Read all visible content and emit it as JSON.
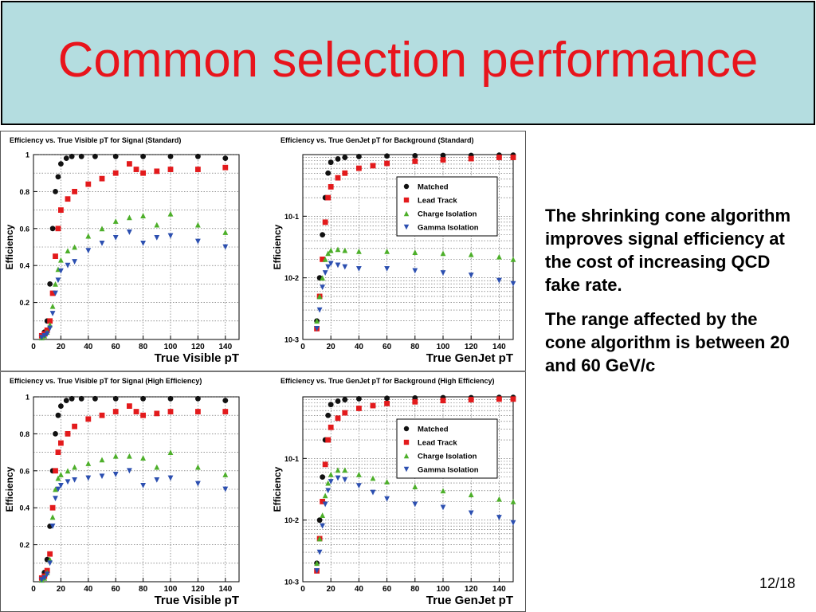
{
  "slide": {
    "title": "Common selection performance",
    "bullets": [
      "The shrinking cone algorithm improves signal efficiency at the cost of increasing QCD fake rate.",
      "The range affected by the cone algorithm is between 20 and 60 GeV/c"
    ],
    "page_number": "12/18"
  },
  "colors": {
    "title": "#e8141c",
    "title_bg": "#b4dde0",
    "Matched": "#111111",
    "Lead Track": "#e31a1c",
    "Charge Isolation": "#4daf2a",
    "Gamma Isolation": "#2c4fb0"
  },
  "chart_data": [
    {
      "type": "scatter",
      "title": "Efficiency vs. True Visible pT for Signal (Standard)",
      "xlabel": "True Visible pT",
      "ylabel": "Efficiency",
      "xlim": [
        0,
        150
      ],
      "ylim": [
        0,
        1
      ],
      "yscale": "linear",
      "xticks": [
        "0",
        "20",
        "40",
        "60",
        "80",
        "100",
        "120",
        "140"
      ],
      "yticks": [
        "0.2",
        "0.4",
        "0.6",
        "0.8",
        "1"
      ],
      "grid": true,
      "legend": "none",
      "series": [
        {
          "name": "Matched",
          "marker": "circle",
          "x": [
            6,
            8,
            10,
            12,
            14,
            16,
            18,
            20,
            24,
            28,
            35,
            45,
            60,
            80,
            100,
            120,
            140
          ],
          "y": [
            0.02,
            0.04,
            0.1,
            0.3,
            0.6,
            0.8,
            0.88,
            0.95,
            0.98,
            0.99,
            0.99,
            0.99,
            0.99,
            0.99,
            0.99,
            0.99,
            0.98
          ]
        },
        {
          "name": "Lead Track",
          "marker": "square",
          "x": [
            6,
            8,
            10,
            12,
            14,
            16,
            18,
            20,
            25,
            30,
            40,
            50,
            60,
            70,
            75,
            80,
            90,
            100,
            120,
            140
          ],
          "y": [
            0.02,
            0.03,
            0.05,
            0.1,
            0.25,
            0.45,
            0.6,
            0.7,
            0.76,
            0.8,
            0.84,
            0.87,
            0.9,
            0.95,
            0.92,
            0.9,
            0.91,
            0.92,
            0.92,
            0.93
          ]
        },
        {
          "name": "Charge Isolation",
          "marker": "triangle-up",
          "x": [
            6,
            8,
            10,
            12,
            14,
            16,
            18,
            20,
            25,
            30,
            40,
            50,
            60,
            70,
            80,
            90,
            100,
            120,
            140
          ],
          "y": [
            0.01,
            0.02,
            0.04,
            0.08,
            0.18,
            0.3,
            0.38,
            0.43,
            0.48,
            0.5,
            0.56,
            0.6,
            0.64,
            0.66,
            0.67,
            0.62,
            0.68,
            0.62,
            0.58
          ]
        },
        {
          "name": "Gamma Isolation",
          "marker": "triangle-down",
          "x": [
            6,
            8,
            10,
            12,
            14,
            16,
            18,
            20,
            25,
            30,
            40,
            50,
            60,
            70,
            80,
            90,
            100,
            120,
            140
          ],
          "y": [
            0.01,
            0.02,
            0.03,
            0.06,
            0.14,
            0.25,
            0.32,
            0.37,
            0.4,
            0.42,
            0.48,
            0.52,
            0.55,
            0.58,
            0.52,
            0.55,
            0.56,
            0.53,
            0.5
          ]
        }
      ]
    },
    {
      "type": "scatter",
      "title": "Efficiency vs. True GenJet pT for Background (Standard)",
      "xlabel": "True GenJet pT",
      "ylabel": "Efficiency",
      "xlim": [
        0,
        150
      ],
      "ylim": [
        0.001,
        1
      ],
      "yscale": "log",
      "xticks": [
        "0",
        "20",
        "40",
        "60",
        "80",
        "100",
        "120",
        "140"
      ],
      "yticks": [
        "10-3",
        "10-2",
        "10-1"
      ],
      "grid": true,
      "legend": "top-right",
      "series": [
        {
          "name": "Matched",
          "marker": "circle",
          "x": [
            10,
            12,
            14,
            16,
            18,
            20,
            25,
            30,
            40,
            60,
            80,
            100,
            120,
            140,
            150
          ],
          "y": [
            0.002,
            0.01,
            0.05,
            0.2,
            0.5,
            0.75,
            0.85,
            0.9,
            0.93,
            0.95,
            0.96,
            0.97,
            0.97,
            0.98,
            0.98
          ]
        },
        {
          "name": "Lead Track",
          "marker": "square",
          "x": [
            10,
            12,
            14,
            16,
            18,
            20,
            25,
            30,
            40,
            50,
            60,
            80,
            100,
            120,
            140,
            150
          ],
          "y": [
            0.0015,
            0.005,
            0.02,
            0.08,
            0.2,
            0.3,
            0.42,
            0.5,
            0.6,
            0.66,
            0.72,
            0.78,
            0.82,
            0.86,
            0.9,
            0.9
          ]
        },
        {
          "name": "Charge Isolation",
          "marker": "triangle-up",
          "x": [
            10,
            12,
            14,
            16,
            18,
            20,
            25,
            30,
            40,
            60,
            80,
            100,
            120,
            140,
            150
          ],
          "y": [
            0.002,
            0.005,
            0.01,
            0.02,
            0.025,
            0.028,
            0.029,
            0.028,
            0.027,
            0.027,
            0.026,
            0.025,
            0.024,
            0.022,
            0.02
          ]
        },
        {
          "name": "Gamma Isolation",
          "marker": "triangle-down",
          "x": [
            10,
            12,
            14,
            16,
            18,
            20,
            25,
            30,
            40,
            60,
            80,
            100,
            120,
            140,
            150
          ],
          "y": [
            0.0015,
            0.003,
            0.007,
            0.012,
            0.015,
            0.017,
            0.016,
            0.015,
            0.014,
            0.014,
            0.013,
            0.012,
            0.011,
            0.009,
            0.008
          ]
        }
      ]
    },
    {
      "type": "scatter",
      "title": "Efficiency vs. True Visible pT for Signal (High Efficiency)",
      "xlabel": "True Visible pT",
      "ylabel": "Efficiency",
      "xlim": [
        0,
        150
      ],
      "ylim": [
        0,
        1
      ],
      "yscale": "linear",
      "xticks": [
        "0",
        "20",
        "40",
        "60",
        "80",
        "100",
        "120",
        "140"
      ],
      "yticks": [
        "0.2",
        "0.4",
        "0.6",
        "0.8",
        "1"
      ],
      "grid": true,
      "legend": "none",
      "series": [
        {
          "name": "Matched",
          "marker": "circle",
          "x": [
            6,
            8,
            10,
            12,
            14,
            16,
            18,
            20,
            24,
            28,
            35,
            45,
            60,
            80,
            100,
            120,
            140
          ],
          "y": [
            0.02,
            0.05,
            0.12,
            0.3,
            0.6,
            0.8,
            0.9,
            0.95,
            0.98,
            0.99,
            0.99,
            0.99,
            0.99,
            0.99,
            0.99,
            0.99,
            0.98
          ]
        },
        {
          "name": "Lead Track",
          "marker": "square",
          "x": [
            6,
            8,
            10,
            12,
            14,
            16,
            18,
            20,
            25,
            30,
            40,
            50,
            60,
            70,
            75,
            80,
            90,
            100,
            120,
            140
          ],
          "y": [
            0.02,
            0.03,
            0.06,
            0.15,
            0.4,
            0.6,
            0.7,
            0.75,
            0.8,
            0.84,
            0.88,
            0.9,
            0.92,
            0.95,
            0.92,
            0.9,
            0.91,
            0.92,
            0.92,
            0.92
          ]
        },
        {
          "name": "Charge Isolation",
          "marker": "triangle-up",
          "x": [
            6,
            8,
            10,
            12,
            14,
            16,
            18,
            20,
            25,
            30,
            40,
            50,
            60,
            70,
            80,
            90,
            100,
            120,
            140
          ],
          "y": [
            0.01,
            0.02,
            0.05,
            0.12,
            0.35,
            0.5,
            0.56,
            0.58,
            0.6,
            0.62,
            0.64,
            0.66,
            0.68,
            0.68,
            0.67,
            0.62,
            0.7,
            0.62,
            0.58
          ]
        },
        {
          "name": "Gamma Isolation",
          "marker": "triangle-down",
          "x": [
            6,
            8,
            10,
            12,
            14,
            16,
            18,
            20,
            25,
            30,
            40,
            50,
            60,
            70,
            80,
            90,
            100,
            120,
            140
          ],
          "y": [
            0.01,
            0.02,
            0.04,
            0.1,
            0.3,
            0.45,
            0.5,
            0.52,
            0.54,
            0.55,
            0.56,
            0.57,
            0.58,
            0.6,
            0.52,
            0.55,
            0.56,
            0.53,
            0.5
          ]
        }
      ]
    },
    {
      "type": "scatter",
      "title": "Efficiency vs. True GenJet pT for Background (High Efficiency)",
      "xlabel": "True GenJet pT",
      "ylabel": "Efficiency",
      "xlim": [
        0,
        150
      ],
      "ylim": [
        0.001,
        1
      ],
      "yscale": "log",
      "xticks": [
        "0",
        "20",
        "40",
        "60",
        "80",
        "100",
        "120",
        "140"
      ],
      "yticks": [
        "10-3",
        "10-2",
        "10-1"
      ],
      "grid": true,
      "legend": "top-right",
      "series": [
        {
          "name": "Matched",
          "marker": "circle",
          "x": [
            10,
            12,
            14,
            16,
            18,
            20,
            25,
            30,
            40,
            60,
            80,
            100,
            120,
            140,
            150
          ],
          "y": [
            0.002,
            0.01,
            0.05,
            0.2,
            0.5,
            0.75,
            0.85,
            0.9,
            0.93,
            0.95,
            0.96,
            0.97,
            0.97,
            0.98,
            0.98
          ]
        },
        {
          "name": "Lead Track",
          "marker": "square",
          "x": [
            10,
            12,
            14,
            16,
            18,
            20,
            25,
            30,
            40,
            50,
            60,
            80,
            100,
            120,
            140,
            150
          ],
          "y": [
            0.0015,
            0.005,
            0.02,
            0.08,
            0.2,
            0.32,
            0.45,
            0.55,
            0.65,
            0.72,
            0.78,
            0.83,
            0.87,
            0.9,
            0.92,
            0.92
          ]
        },
        {
          "name": "Charge Isolation",
          "marker": "triangle-up",
          "x": [
            10,
            12,
            14,
            16,
            18,
            20,
            25,
            30,
            40,
            50,
            60,
            80,
            100,
            120,
            140,
            150
          ],
          "y": [
            0.002,
            0.005,
            0.012,
            0.025,
            0.04,
            0.055,
            0.065,
            0.065,
            0.055,
            0.048,
            0.042,
            0.035,
            0.03,
            0.026,
            0.022,
            0.02
          ]
        },
        {
          "name": "Gamma Isolation",
          "marker": "triangle-down",
          "x": [
            10,
            12,
            14,
            16,
            18,
            20,
            25,
            30,
            40,
            50,
            60,
            80,
            100,
            120,
            140,
            150
          ],
          "y": [
            0.0015,
            0.003,
            0.008,
            0.018,
            0.03,
            0.042,
            0.048,
            0.045,
            0.036,
            0.028,
            0.022,
            0.018,
            0.016,
            0.013,
            0.011,
            0.009
          ]
        }
      ]
    }
  ]
}
